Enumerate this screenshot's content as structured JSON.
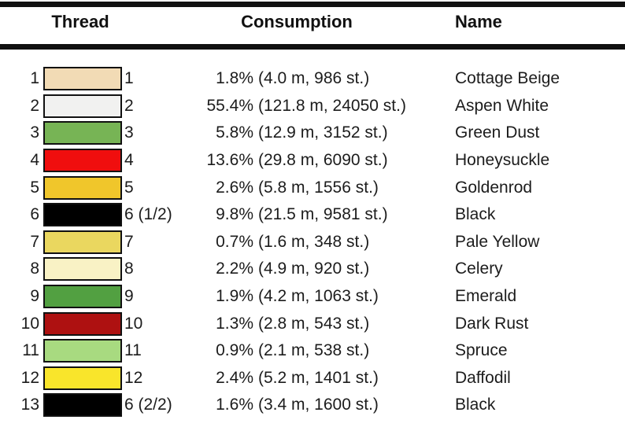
{
  "header": {
    "thread": "Thread",
    "consumption": "Consumption",
    "name": "Name"
  },
  "table_rule_color": "#111111",
  "rows": [
    {
      "index": "1",
      "code": "1",
      "color": "#F2DBB5",
      "pct": "1.8%",
      "detail": "(4.0 m, 986 st.)",
      "name": "Cottage Beige"
    },
    {
      "index": "2",
      "code": "2",
      "color": "#F1F1F0",
      "pct": "55.4%",
      "detail": "(121.8 m, 24050 st.)",
      "name": "Aspen White"
    },
    {
      "index": "3",
      "code": "3",
      "color": "#77B455",
      "pct": "5.8%",
      "detail": "(12.9 m, 3152 st.)",
      "name": "Green Dust"
    },
    {
      "index": "4",
      "code": "4",
      "color": "#F00E0E",
      "pct": "13.6%",
      "detail": "(29.8 m, 6090 st.)",
      "name": "Honeysuckle"
    },
    {
      "index": "5",
      "code": "5",
      "color": "#F0C62B",
      "pct": "2.6%",
      "detail": "(5.8 m, 1556 st.)",
      "name": "Goldenrod"
    },
    {
      "index": "6",
      "code": "6 (1/2)",
      "color": "#000000",
      "pct": "9.8%",
      "detail": "(21.5 m, 9581 st.)",
      "name": "Black"
    },
    {
      "index": "7",
      "code": "7",
      "color": "#EAD75F",
      "pct": "0.7%",
      "detail": "(1.6 m, 348 st.)",
      "name": "Pale Yellow"
    },
    {
      "index": "8",
      "code": "8",
      "color": "#F9F2C5",
      "pct": "2.2%",
      "detail": "(4.9 m, 920 st.)",
      "name": "Celery"
    },
    {
      "index": "9",
      "code": "9",
      "color": "#52A041",
      "pct": "1.9%",
      "detail": "(4.2 m, 1063 st.)",
      "name": "Emerald"
    },
    {
      "index": "10",
      "code": "10",
      "color": "#AE1111",
      "pct": "1.3%",
      "detail": "(2.8 m, 543 st.)",
      "name": "Dark Rust"
    },
    {
      "index": "11",
      "code": "11",
      "color": "#A8DA80",
      "pct": "0.9%",
      "detail": "(2.1 m, 538 st.)",
      "name": "Spruce"
    },
    {
      "index": "12",
      "code": "12",
      "color": "#F9E52B",
      "pct": "2.4%",
      "detail": "(5.2 m, 1401 st.)",
      "name": "Daffodil"
    },
    {
      "index": "13",
      "code": "6 (2/2)",
      "color": "#000000",
      "pct": "1.6%",
      "detail": "(3.4 m, 1600 st.)",
      "name": "Black"
    }
  ]
}
